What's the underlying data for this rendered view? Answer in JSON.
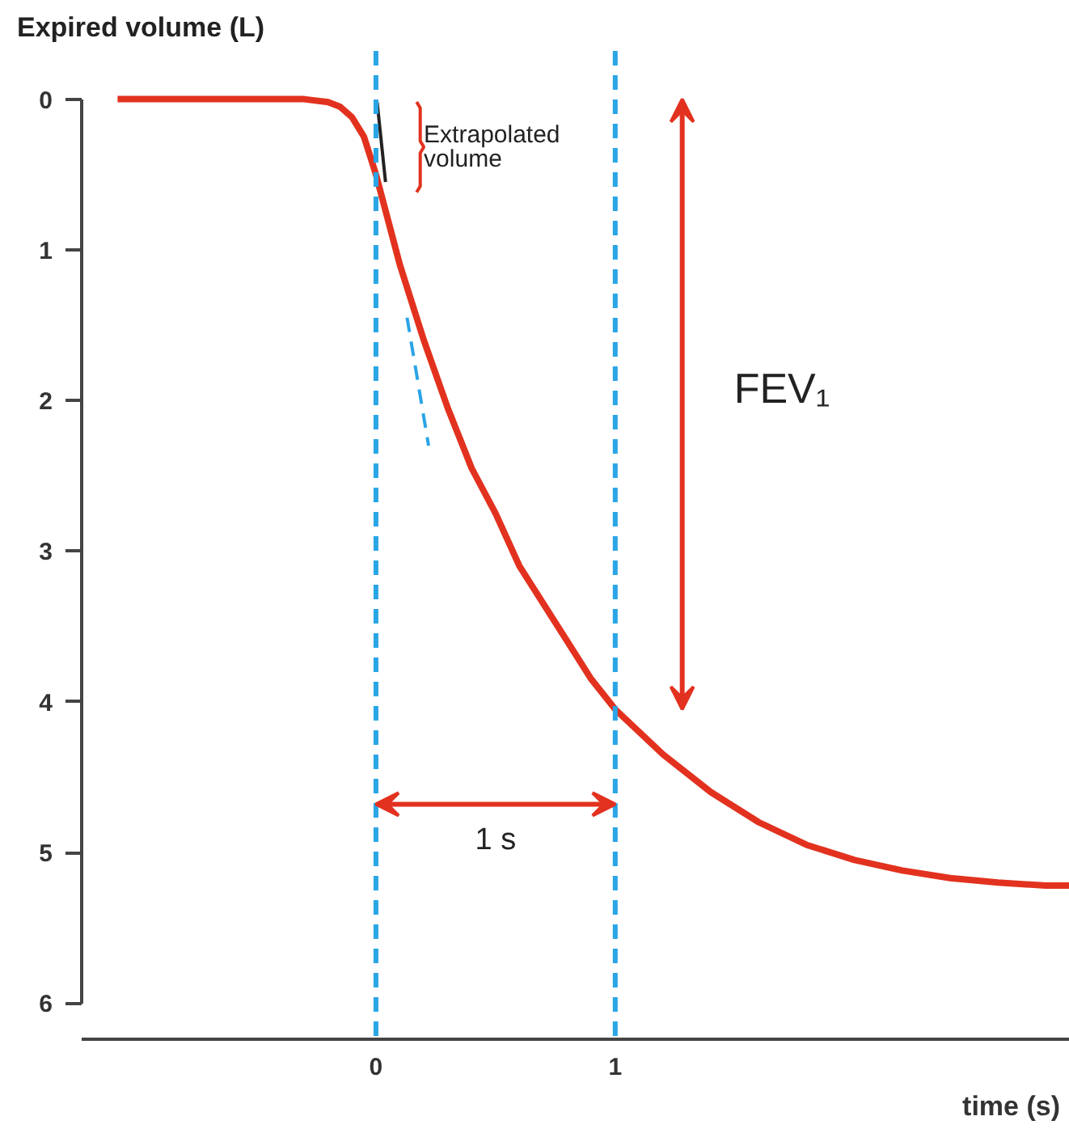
{
  "chart_data": {
    "type": "line",
    "ylabel": "Expired volume (L)",
    "xlabel": "time (s)",
    "xlim": [
      -1.23,
      2.9
    ],
    "ylim": [
      6.24,
      -0.32
    ],
    "xticks": [
      0,
      1
    ],
    "yticks": [
      0,
      1,
      2,
      3,
      4,
      5,
      6
    ],
    "grid": false,
    "marker": "none",
    "series": [
      {
        "color": "#e2321f",
        "line_style": "solid",
        "x": [
          -1.08,
          -0.6,
          -0.3,
          -0.2,
          -0.15,
          -0.1,
          -0.05,
          0,
          0.05,
          0.1,
          0.2,
          0.3,
          0.4,
          0.5,
          0.6,
          0.7,
          0.8,
          0.9,
          1.0,
          1.2,
          1.4,
          1.6,
          1.8,
          2.0,
          2.2,
          2.4,
          2.6,
          2.8,
          2.9
        ],
        "values": [
          0,
          0,
          0,
          0.02,
          0.05,
          0.12,
          0.25,
          0.5,
          0.8,
          1.1,
          1.6,
          2.05,
          2.45,
          2.75,
          3.1,
          3.35,
          3.6,
          3.85,
          4.05,
          4.35,
          4.6,
          4.8,
          4.95,
          5.05,
          5.12,
          5.17,
          5.2,
          5.22,
          5.22
        ]
      },
      {
        "color": "#222222",
        "line_style": "solid",
        "x": [
          0.005,
          0.04
        ],
        "values": [
          0.02,
          0.55
        ]
      },
      {
        "color": "#2aa5e6",
        "line_style": "dashed",
        "x": [
          0.13,
          0.22
        ],
        "values": [
          1.45,
          2.3
        ]
      }
    ],
    "ref_lines": [
      {
        "axis": "x",
        "value": 0,
        "color": "#2aa5e6",
        "line_style": "dashed"
      },
      {
        "axis": "x",
        "value": 1,
        "color": "#2aa5e6",
        "line_style": "dashed"
      }
    ],
    "annotations": [
      "Extrapolated volume",
      "FEV₁",
      "1 s"
    ]
  }
}
